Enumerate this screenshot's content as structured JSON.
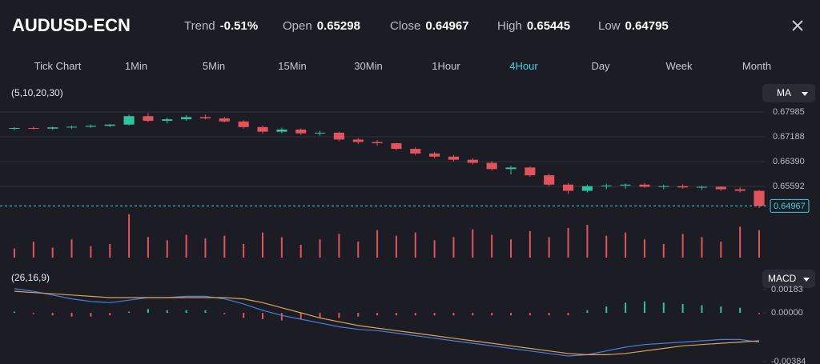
{
  "header": {
    "symbol": "AUDUSD-ECN",
    "stats": [
      {
        "label": "Trend",
        "value": "-0.51%"
      },
      {
        "label": "Open",
        "value": "0.65298"
      },
      {
        "label": "Close",
        "value": "0.64967"
      },
      {
        "label": "High",
        "value": "0.65445"
      },
      {
        "label": "Low",
        "value": "0.64795"
      }
    ]
  },
  "timeframes": {
    "items": [
      "Tick Chart",
      "1Min",
      "5Min",
      "15Min",
      "30Min",
      "1Hour",
      "4Hour",
      "Day",
      "Week",
      "Month"
    ],
    "active": 6
  },
  "chart_data": [
    {
      "type": "candlestick",
      "label": "(5,10,20,30)",
      "indicator": "MA",
      "open": [
        0.6745,
        0.6747,
        0.6745,
        0.6749,
        0.6751,
        0.6754,
        0.6758,
        0.6785,
        0.677,
        0.6775,
        0.6782,
        0.6778,
        0.6768,
        0.675,
        0.6735,
        0.6742,
        0.673,
        0.6732,
        0.671,
        0.6702,
        0.6698,
        0.668,
        0.6665,
        0.6655,
        0.6645,
        0.6635,
        0.6615,
        0.662,
        0.6595,
        0.6565,
        0.6545,
        0.656,
        0.6562,
        0.6565,
        0.6558,
        0.656,
        0.6556,
        0.6558,
        0.655,
        0.6545
      ],
      "high": [
        0.675,
        0.6752,
        0.6751,
        0.6755,
        0.6758,
        0.676,
        0.679,
        0.6795,
        0.678,
        0.6788,
        0.679,
        0.6783,
        0.6772,
        0.6755,
        0.6748,
        0.6745,
        0.6738,
        0.6735,
        0.6715,
        0.6708,
        0.67,
        0.6685,
        0.667,
        0.666,
        0.665,
        0.664,
        0.6625,
        0.6624,
        0.66,
        0.657,
        0.6565,
        0.6568,
        0.6568,
        0.657,
        0.6565,
        0.6566,
        0.6562,
        0.656,
        0.6556,
        0.6548
      ],
      "low": [
        0.674,
        0.6743,
        0.6741,
        0.6745,
        0.6748,
        0.675,
        0.6755,
        0.6765,
        0.6762,
        0.677,
        0.6775,
        0.6765,
        0.6745,
        0.6728,
        0.673,
        0.6725,
        0.6722,
        0.6705,
        0.6695,
        0.669,
        0.6675,
        0.666,
        0.665,
        0.664,
        0.663,
        0.661,
        0.6598,
        0.659,
        0.656,
        0.6535,
        0.654,
        0.655,
        0.6552,
        0.6555,
        0.655,
        0.6552,
        0.6548,
        0.6545,
        0.654,
        0.649
      ],
      "close": [
        0.6747,
        0.6745,
        0.6749,
        0.6751,
        0.6754,
        0.6758,
        0.6785,
        0.677,
        0.6775,
        0.6782,
        0.6778,
        0.6768,
        0.675,
        0.6735,
        0.6742,
        0.673,
        0.6732,
        0.671,
        0.6702,
        0.6698,
        0.668,
        0.6665,
        0.6655,
        0.6645,
        0.6635,
        0.6615,
        0.662,
        0.6595,
        0.6565,
        0.6545,
        0.656,
        0.6562,
        0.6565,
        0.6558,
        0.656,
        0.6556,
        0.6558,
        0.655,
        0.6545,
        0.6497
      ],
      "last_price": 0.64967,
      "ylim": [
        0.6477,
        0.6837
      ],
      "yticks": [
        0.67985,
        0.67188,
        {
          "value": 0.6639,
          "label": "0.66390"
        },
        0.65592
      ],
      "up_color": "#2ec4a0",
      "down_color": "#e4535b",
      "grid": true
    },
    {
      "type": "bar",
      "values": [
        20,
        35,
        22,
        40,
        25,
        30,
        95,
        45,
        38,
        50,
        42,
        48,
        30,
        55,
        45,
        28,
        40,
        52,
        35,
        60,
        48,
        55,
        38,
        45,
        62,
        50,
        40,
        58,
        45,
        65,
        72,
        48,
        55,
        40,
        30,
        52,
        45,
        35,
        68,
        60
      ],
      "ylim": [
        0,
        100
      ],
      "color": "#e4535b"
    },
    {
      "type": "macd",
      "label": "(26,16,9)",
      "indicator": "MACD",
      "macd": [
        0.0019,
        0.0017,
        0.0014,
        0.0011,
        0.0009,
        0.0008,
        0.001,
        0.0012,
        0.0012,
        0.0013,
        0.0013,
        0.0011,
        0.0007,
        0.0002,
        -0.0002,
        -0.0005,
        -0.0008,
        -0.0011,
        -0.0013,
        -0.0014,
        -0.0016,
        -0.0018,
        -0.002,
        -0.0022,
        -0.0024,
        -0.0026,
        -0.0028,
        -0.003,
        -0.0032,
        -0.0034,
        -0.0033,
        -0.003,
        -0.0027,
        -0.0025,
        -0.0024,
        -0.0023,
        -0.0022,
        -0.0021,
        -0.0021,
        -0.0023
      ],
      "signal": [
        0.0017,
        0.0016,
        0.0015,
        0.0014,
        0.0013,
        0.0012,
        0.0012,
        0.0012,
        0.0012,
        0.0012,
        0.0012,
        0.0012,
        0.0011,
        0.0008,
        0.0004,
        0.0,
        -0.0004,
        -0.0007,
        -0.001,
        -0.0012,
        -0.0014,
        -0.0016,
        -0.0018,
        -0.002,
        -0.0022,
        -0.0024,
        -0.0026,
        -0.0028,
        -0.003,
        -0.0032,
        -0.0033,
        -0.0033,
        -0.0032,
        -0.003,
        -0.0028,
        -0.0026,
        -0.0025,
        -0.0024,
        -0.0023,
        -0.0022
      ],
      "histogram": [
        0.0001,
        -0.0001,
        -0.0002,
        -0.0003,
        -0.0003,
        -0.0002,
        0.0001,
        0.0003,
        0.0002,
        0.0002,
        0.0002,
        -0.0001,
        -0.0004,
        -0.0005,
        -0.0006,
        -0.0005,
        -0.0004,
        -0.0004,
        -0.0003,
        -0.0002,
        -0.0002,
        -0.0002,
        -0.0002,
        -0.0002,
        -0.0002,
        -0.0002,
        -0.0002,
        -0.0002,
        -0.0002,
        -0.0002,
        0.0002,
        0.0005,
        0.0008,
        0.0009,
        0.0008,
        0.0007,
        0.0006,
        0.0005,
        0.0004,
        -0.0001
      ],
      "ylim": [
        -0.00384,
        0.00183
      ],
      "yticks": [
        0.00183,
        {
          "value": 0,
          "label": "0.00000"
        },
        -0.00384
      ],
      "macd_color": "#4a7de0",
      "signal_color": "#d8a35a",
      "up_color": "#2ec4a0",
      "down_color": "#e4535b"
    }
  ]
}
